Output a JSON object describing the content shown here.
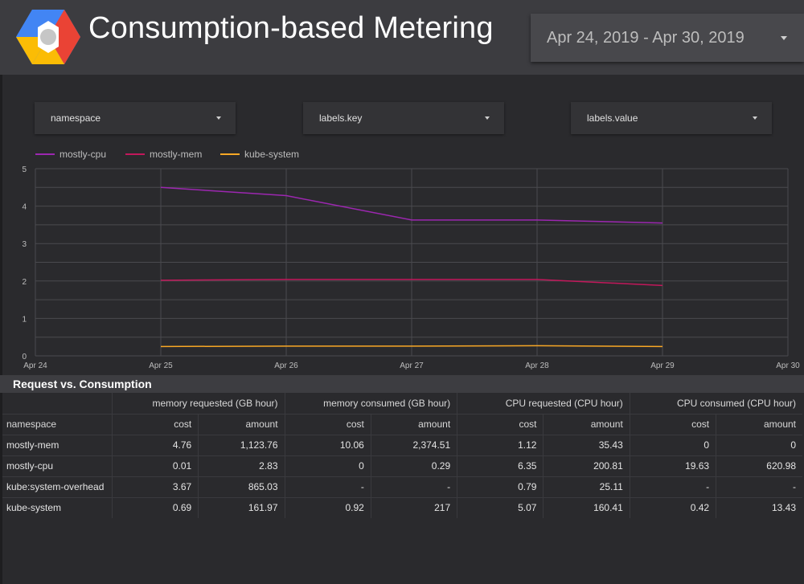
{
  "header": {
    "title": "Consumption-based Metering",
    "date_range": "Apr 24, 2019 - Apr 30, 2019",
    "logo": "google-cloud-hexagon-logo"
  },
  "filters": [
    {
      "label": "namespace"
    },
    {
      "label": "labels.key"
    },
    {
      "label": "labels.value"
    }
  ],
  "chart_data": {
    "type": "line",
    "title": "",
    "x": [
      "Apr 24",
      "Apr 25",
      "Apr 26",
      "Apr 27",
      "Apr 28",
      "Apr 29",
      "Apr 30"
    ],
    "y_ticks": [
      "0",
      "1",
      "2",
      "3",
      "4",
      "5"
    ],
    "ylim": [
      0,
      5
    ],
    "grid": true,
    "legend_position": "top-left",
    "series": [
      {
        "name": "mostly-cpu",
        "color": "#9c27b0",
        "points": [
          [
            "Apr 25",
            4.5
          ],
          [
            "Apr 26",
            4.28
          ],
          [
            "Apr 27",
            3.63
          ],
          [
            "Apr 28",
            3.63
          ],
          [
            "Apr 29",
            3.55
          ]
        ]
      },
      {
        "name": "mostly-mem",
        "color": "#c2185b",
        "points": [
          [
            "Apr 25",
            2.02
          ],
          [
            "Apr 26",
            2.04
          ],
          [
            "Apr 27",
            2.04
          ],
          [
            "Apr 28",
            2.04
          ],
          [
            "Apr 29",
            1.88
          ]
        ]
      },
      {
        "name": "kube-system",
        "color": "#f9a825",
        "points": [
          [
            "Apr 25",
            0.25
          ],
          [
            "Apr 26",
            0.26
          ],
          [
            "Apr 27",
            0.26
          ],
          [
            "Apr 28",
            0.27
          ],
          [
            "Apr 29",
            0.25
          ]
        ]
      }
    ]
  },
  "table": {
    "title": "Request vs. Consumption",
    "groups": [
      "memory requested (GB hour)",
      "memory consumed (GB hour)",
      "CPU requested (CPU hour)",
      "CPU consumed (CPU hour)"
    ],
    "sub_headers": [
      "namespace",
      "cost",
      "amount",
      "cost",
      "amount",
      "cost",
      "amount",
      "cost",
      "amount"
    ],
    "rows": [
      [
        "mostly-mem",
        "4.76",
        "1,123.76",
        "10.06",
        "2,374.51",
        "1.12",
        "35.43",
        "0",
        "0"
      ],
      [
        "mostly-cpu",
        "0.01",
        "2.83",
        "0",
        "0.29",
        "6.35",
        "200.81",
        "19.63",
        "620.98"
      ],
      [
        "kube:system-overhead",
        "3.67",
        "865.03",
        "-",
        "-",
        "0.79",
        "25.11",
        "-",
        "-"
      ],
      [
        "kube-system",
        "0.69",
        "161.97",
        "0.92",
        "217",
        "5.07",
        "160.41",
        "0.42",
        "13.43"
      ]
    ]
  }
}
